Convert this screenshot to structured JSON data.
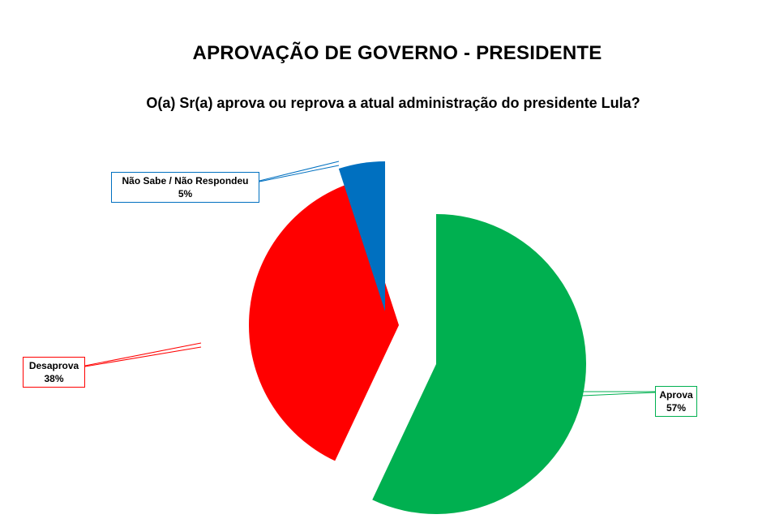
{
  "title": "APROVAÇÃO DE GOVERNO - PRESIDENTE",
  "subtitle": "O(a) Sr(a) aprova ou reprova a atual administração do presidente Lula?",
  "chart_data": {
    "type": "pie",
    "title": "APROVAÇÃO DE GOVERNO - PRESIDENTE",
    "subtitle": "O(a) Sr(a) aprova ou reprova a atual administração do presidente Lula?",
    "slices": [
      {
        "label": "Aprova",
        "value": 57,
        "value_label": "57%",
        "color": "#00B050"
      },
      {
        "label": "Desaprova",
        "value": 38,
        "value_label": "38%",
        "color": "#FF0000"
      },
      {
        "label": "Não Sabe / Não Respondeu",
        "value": 5,
        "value_label": "5%",
        "color": "#0070C0"
      }
    ],
    "exploded": true,
    "legend": "none"
  }
}
